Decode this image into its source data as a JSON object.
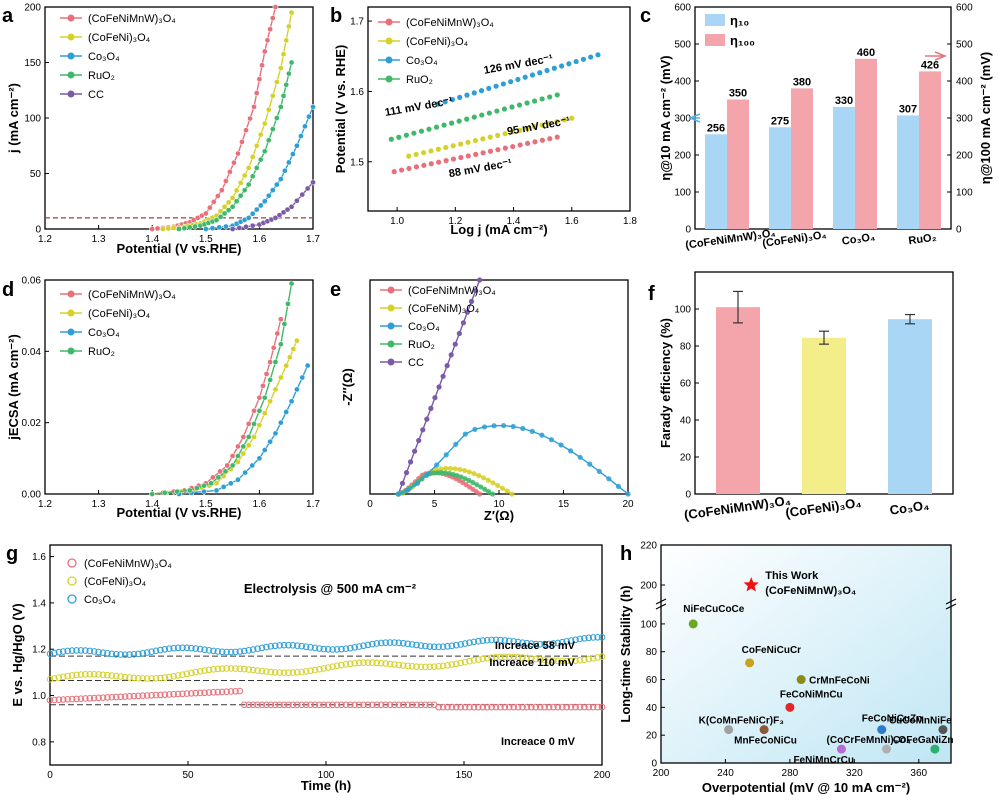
{
  "chart_data": [
    {
      "panel": "a",
      "type": "line",
      "xlabel": "Potential (V vs.RHE)",
      "ylabel": "j (mA cm⁻²)",
      "xlim": [
        1.2,
        1.7
      ],
      "ylim": [
        0,
        200
      ],
      "xticks": [
        "1.2",
        "1.3",
        "1.4",
        "1.5",
        "1.6",
        "1.7"
      ],
      "yticks": [
        "0",
        "50",
        "100",
        "150",
        "200"
      ],
      "reference_line_y": 10,
      "series": [
        {
          "name": "(CoFeNiMnW)₃O₄",
          "color": "#e8707a",
          "x": [
            1.4,
            1.44,
            1.47,
            1.5,
            1.53,
            1.56,
            1.59,
            1.61,
            1.63
          ],
          "y": [
            0,
            2,
            6,
            14,
            35,
            68,
            110,
            160,
            200
          ]
        },
        {
          "name": "(CoFeNi)₃O₄",
          "color": "#d6d12a",
          "x": [
            1.42,
            1.46,
            1.49,
            1.52,
            1.55,
            1.58,
            1.61,
            1.64,
            1.66
          ],
          "y": [
            0,
            2,
            5,
            12,
            28,
            55,
            95,
            145,
            195
          ]
        },
        {
          "name": "Co₃O₄",
          "color": "#2e9fd6",
          "x": [
            1.5,
            1.55,
            1.58,
            1.61,
            1.64,
            1.67,
            1.7
          ],
          "y": [
            0,
            3,
            10,
            25,
            45,
            75,
            110
          ]
        },
        {
          "name": "RuO₂",
          "color": "#3fb86a",
          "x": [
            1.45,
            1.49,
            1.52,
            1.55,
            1.58,
            1.61,
            1.64,
            1.66
          ],
          "y": [
            0,
            3,
            8,
            20,
            40,
            70,
            110,
            150
          ]
        },
        {
          "name": "CC",
          "color": "#7b5aa8",
          "x": [
            1.55,
            1.6,
            1.63,
            1.66,
            1.7
          ],
          "y": [
            0,
            4,
            10,
            20,
            42
          ]
        }
      ]
    },
    {
      "panel": "b",
      "type": "line",
      "xlabel": "Log j (mA cm⁻²)",
      "ylabel": "Potential (V vs. RHE)",
      "xlim": [
        0.9,
        1.8
      ],
      "ylim": [
        1.43,
        1.72
      ],
      "xticks": [
        "1.0",
        "1.2",
        "1.4",
        "1.6",
        "1.8"
      ],
      "yticks": [
        "1.5",
        "1.6",
        "1.7"
      ],
      "series": [
        {
          "name": "(CoFeNiMnW)₃O₄",
          "color": "#e8707a",
          "x": [
            0.99,
            1.55
          ],
          "y": [
            1.486,
            1.535
          ],
          "label": "88 mV dec⁻¹"
        },
        {
          "name": "(CoFeNi)₃O₄",
          "color": "#d6d12a",
          "x": [
            1.04,
            1.6
          ],
          "y": [
            1.508,
            1.562
          ],
          "label": "95 mV dec⁻¹"
        },
        {
          "name": "Co₃O₄",
          "color": "#2e9fd6",
          "x": [
            1.14,
            1.69
          ],
          "y": [
            1.582,
            1.652
          ],
          "label": "126 mV dec⁻¹"
        },
        {
          "name": "RuO₂",
          "color": "#3fb86a",
          "x": [
            0.98,
            1.55
          ],
          "y": [
            1.532,
            1.595
          ],
          "label": "111 mV dec⁻¹"
        }
      ]
    },
    {
      "panel": "c",
      "type": "bar",
      "categories": [
        "(CoFeNiMnW)₃O₄",
        "(CoFeNi)₃O₄",
        "Co₃O₄",
        "RuO₂"
      ],
      "ylabel_left": "η@10 mA cm⁻² (mV)",
      "ylabel_right": "η@100 mA cm⁻² (mV)",
      "ylim": [
        0,
        600
      ],
      "yticks": [
        "0",
        "100",
        "200",
        "300",
        "400",
        "500",
        "600"
      ],
      "series": [
        {
          "name": "η₁₀",
          "color": "#a9d6f5",
          "values": [
            256,
            275,
            330,
            307
          ]
        },
        {
          "name": "η₁₀₀",
          "color": "#f4a5ab",
          "values": [
            350,
            380,
            460,
            426
          ]
        }
      ]
    },
    {
      "panel": "d",
      "type": "line",
      "xlabel": "Potential (V vs.RHE)",
      "ylabel": "jECSA (mA cm⁻²)",
      "xlim": [
        1.2,
        1.7
      ],
      "ylim": [
        0,
        0.06
      ],
      "xticks": [
        "1.2",
        "1.3",
        "1.4",
        "1.5",
        "1.6",
        "1.7"
      ],
      "yticks": [
        "0.00",
        "0.02",
        "0.04",
        "0.06"
      ],
      "series": [
        {
          "name": "(CoFeNiMnW)₃O₄",
          "color": "#e8707a",
          "x": [
            1.4,
            1.46,
            1.5,
            1.54,
            1.57,
            1.6,
            1.62,
            1.64
          ],
          "y": [
            0,
            0.001,
            0.003,
            0.008,
            0.016,
            0.027,
            0.037,
            0.049
          ]
        },
        {
          "name": "(CoFeNi)₃O₄",
          "color": "#d6d12a",
          "x": [
            1.4,
            1.48,
            1.52,
            1.56,
            1.59,
            1.62,
            1.65,
            1.67
          ],
          "y": [
            0,
            0.001,
            0.003,
            0.009,
            0.016,
            0.026,
            0.036,
            0.043
          ]
        },
        {
          "name": "Co₃O₄",
          "color": "#2e9fd6",
          "x": [
            1.45,
            1.52,
            1.56,
            1.6,
            1.63,
            1.66,
            1.69
          ],
          "y": [
            0,
            0.001,
            0.004,
            0.01,
            0.017,
            0.026,
            0.036
          ]
        },
        {
          "name": "RuO₂",
          "color": "#3fb86a",
          "x": [
            1.4,
            1.47,
            1.51,
            1.55,
            1.58,
            1.61,
            1.64,
            1.66
          ],
          "y": [
            0,
            0.001,
            0.003,
            0.008,
            0.016,
            0.027,
            0.042,
            0.059
          ]
        }
      ]
    },
    {
      "panel": "e",
      "type": "scatter",
      "xlabel": "Z′(Ω)",
      "ylabel": "-Z″(Ω)",
      "xlim": [
        0,
        20
      ],
      "ylim": [
        0,
        20
      ],
      "xticks": [
        "0",
        "5",
        "10",
        "15",
        "20"
      ],
      "series": [
        {
          "name": "(CoFeNiMnW)₃O₄",
          "color": "#e8707a"
        },
        {
          "name": "(CoFeNiM)₃O₄",
          "color": "#d6d12a"
        },
        {
          "name": "Co₃O₄",
          "color": "#2e9fd6"
        },
        {
          "name": "RuO₂",
          "color": "#3fb86a"
        },
        {
          "name": "CC",
          "color": "#7b5aa8"
        }
      ]
    },
    {
      "panel": "f",
      "type": "bar",
      "categories": [
        "(CoFeNiMnW)₃O₄",
        "(CoFeNi)₃O₄",
        "Co₃O₄"
      ],
      "ylabel": "Farady efficiency (%)",
      "ylim": [
        0,
        120
      ],
      "yticks": [
        "0",
        "20",
        "40",
        "60",
        "80",
        "100"
      ],
      "values": [
        101,
        84.5,
        94.5
      ],
      "errors": [
        8.5,
        3.5,
        2.5
      ],
      "colors": [
        "#f4a5ab",
        "#f3ee8a",
        "#a9d6f5"
      ]
    },
    {
      "panel": "g",
      "type": "line",
      "xlabel": "Time (h)",
      "ylabel": "E vs. Hg/HgO (V)",
      "xlim": [
        0,
        200
      ],
      "ylim": [
        0.7,
        1.65
      ],
      "xticks": [
        "0",
        "50",
        "100",
        "150",
        "200"
      ],
      "yticks": [
        "0.8",
        "1.0",
        "1.2",
        "1.4",
        "1.6"
      ],
      "annotation": "Electrolysis @ 500 mA cm⁻²",
      "series": [
        {
          "name": "(CoFeNiMnW)₃O₄",
          "color": "#e8707a",
          "label": "Increace 0 mV",
          "baseline": 0.96
        },
        {
          "name": "(CoFeNi)₃O₄",
          "color": "#d6d12a",
          "label": "Increace 110 mV",
          "baseline": 1.07
        },
        {
          "name": "Co₃O₄",
          "color": "#2e9fd6",
          "label": "Increace 58 mV",
          "baseline": 1.18
        }
      ]
    },
    {
      "panel": "h",
      "type": "scatter",
      "xlabel": "Overpotential (mV @ 10 mA cm⁻²)",
      "ylabel": "Long-time Stability (h)",
      "xlim": [
        200,
        380
      ],
      "xticks": [
        "200",
        "240",
        "280",
        "320",
        "360"
      ],
      "yticks": [
        "0",
        "20",
        "40",
        "60",
        "80",
        "100",
        "200",
        "220"
      ],
      "points": [
        {
          "label": "This Work\n(CoFeNiMnW)₃O₄",
          "x": 256,
          "y": 200,
          "color": "#e11",
          "marker": "star"
        },
        {
          "label": "NiFeCuCoCe",
          "x": 220,
          "y": 100,
          "color": "#6aa820"
        },
        {
          "label": "CoFeNiCuCr",
          "x": 255,
          "y": 72,
          "color": "#c9a11c"
        },
        {
          "label": "CrMnFeCoNi",
          "x": 287,
          "y": 60,
          "color": "#8a8a1a"
        },
        {
          "label": "FeCoNiMnCu",
          "x": 280,
          "y": 40,
          "color": "#e02828"
        },
        {
          "label": "K(CoMnFeNiCr)F₃",
          "x": 242,
          "y": 24,
          "color": "#a0a0a0"
        },
        {
          "label": "MnFeCoNiCu",
          "x": 264,
          "y": 24,
          "color": "#8b5a3a"
        },
        {
          "label": "FeCoNiCuZn",
          "x": 337,
          "y": 24,
          "color": "#2a7ad0"
        },
        {
          "label": "(CoCrFeMnNi)₃O₄",
          "x": 340,
          "y": 10,
          "color": "#b0b0b0"
        },
        {
          "label": "FeNiMnCrCu",
          "x": 312,
          "y": 10,
          "color": "#b86ad6"
        },
        {
          "label": "CuCoMnNiFe",
          "x": 375,
          "y": 24,
          "color": "#555"
        },
        {
          "label": "CoFeGaNiZn",
          "x": 370,
          "y": 10,
          "color": "#2ab070"
        }
      ]
    }
  ],
  "labels": {
    "a": "a",
    "b": "b",
    "c": "c",
    "d": "d",
    "e": "e",
    "f": "f",
    "g": "g",
    "h": "h"
  },
  "text": {
    "b_slopes": [
      "126 mV dec⁻¹",
      "111 mV dec⁻¹",
      "95 mV dec⁻¹",
      "88 mV dec⁻¹"
    ],
    "c_values_10": [
      "256",
      "275",
      "330",
      "307"
    ],
    "c_values_100": [
      "350",
      "380",
      "460",
      "426"
    ]
  }
}
